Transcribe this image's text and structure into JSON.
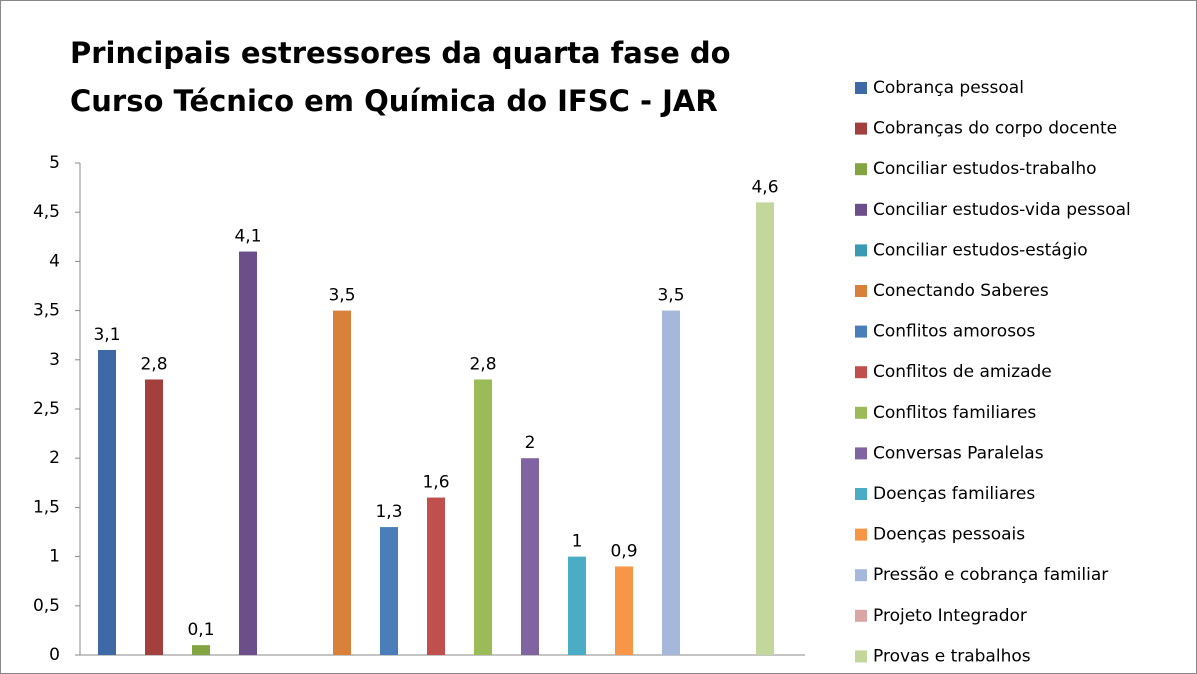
{
  "chart_data": {
    "type": "bar",
    "title": [
      "Principais estressores da quarta fase do",
      "Curso Técnico em Química do IFSC - JAR"
    ],
    "ylim": [
      0,
      5
    ],
    "yticks": [
      0,
      {
        "value": 0.5,
        "label": "0,5"
      },
      1,
      {
        "value": 1.5,
        "label": "1,5"
      },
      2,
      {
        "value": 2.5,
        "label": "2,5"
      },
      3,
      {
        "value": 3.5,
        "label": "3,5"
      },
      4,
      {
        "value": 4.5,
        "label": "4,5"
      },
      5
    ],
    "series": [
      {
        "name": "Cobrança pessoal",
        "color": "#3f69a6",
        "values": [
          3.1
        ],
        "value_labels": [
          "3,1"
        ]
      },
      {
        "name": "Cobranças do corpo docente",
        "color": "#a3403d",
        "values": [
          2.8
        ],
        "value_labels": [
          "2,8"
        ]
      },
      {
        "name": "Conciliar estudos-trabalho",
        "color": "#82a441",
        "values": [
          0.1
        ],
        "value_labels": [
          "0,1"
        ]
      },
      {
        "name": "Conciliar estudos-vida pessoal",
        "color": "#6b4e8a",
        "values": [
          4.1
        ],
        "value_labels": [
          "4,1"
        ]
      },
      {
        "name": "Conciliar estudos-estágio",
        "color": "#3a9ab3",
        "values": [
          null
        ],
        "value_labels": [
          null
        ]
      },
      {
        "name": "Conectando Saberes",
        "color": "#d9803a",
        "values": [
          3.5
        ],
        "value_labels": [
          "3,5"
        ]
      },
      {
        "name": "Conflitos amorosos",
        "color": "#4a7ebb",
        "values": [
          1.3
        ],
        "value_labels": [
          "1,3"
        ]
      },
      {
        "name": "Conflitos de amizade",
        "color": "#c0504d",
        "values": [
          1.6
        ],
        "value_labels": [
          "1,6"
        ]
      },
      {
        "name": "Conflitos familiares",
        "color": "#9bbb59",
        "values": [
          2.8
        ],
        "value_labels": [
          "2,8"
        ]
      },
      {
        "name": "Conversas Paralelas",
        "color": "#8064a2",
        "values": [
          2
        ],
        "value_labels": [
          "2"
        ]
      },
      {
        "name": "Doenças familiares",
        "color": "#4bacc6",
        "values": [
          1
        ],
        "value_labels": [
          "1"
        ]
      },
      {
        "name": "Doenças pessoais",
        "color": "#f79646",
        "values": [
          0.9
        ],
        "value_labels": [
          "0,9"
        ]
      },
      {
        "name": "Pressão e cobrança familiar",
        "color": "#a5b8dc",
        "values": [
          3.5
        ],
        "value_labels": [
          "3,5"
        ]
      },
      {
        "name": "Projeto Integrador",
        "color": "#d9a5a5",
        "values": [
          null
        ],
        "value_labels": [
          null
        ]
      },
      {
        "name": "Provas e trabalhos",
        "color": "#c3d69b",
        "values": [
          4.6
        ],
        "value_labels": [
          "4,6"
        ]
      }
    ]
  }
}
